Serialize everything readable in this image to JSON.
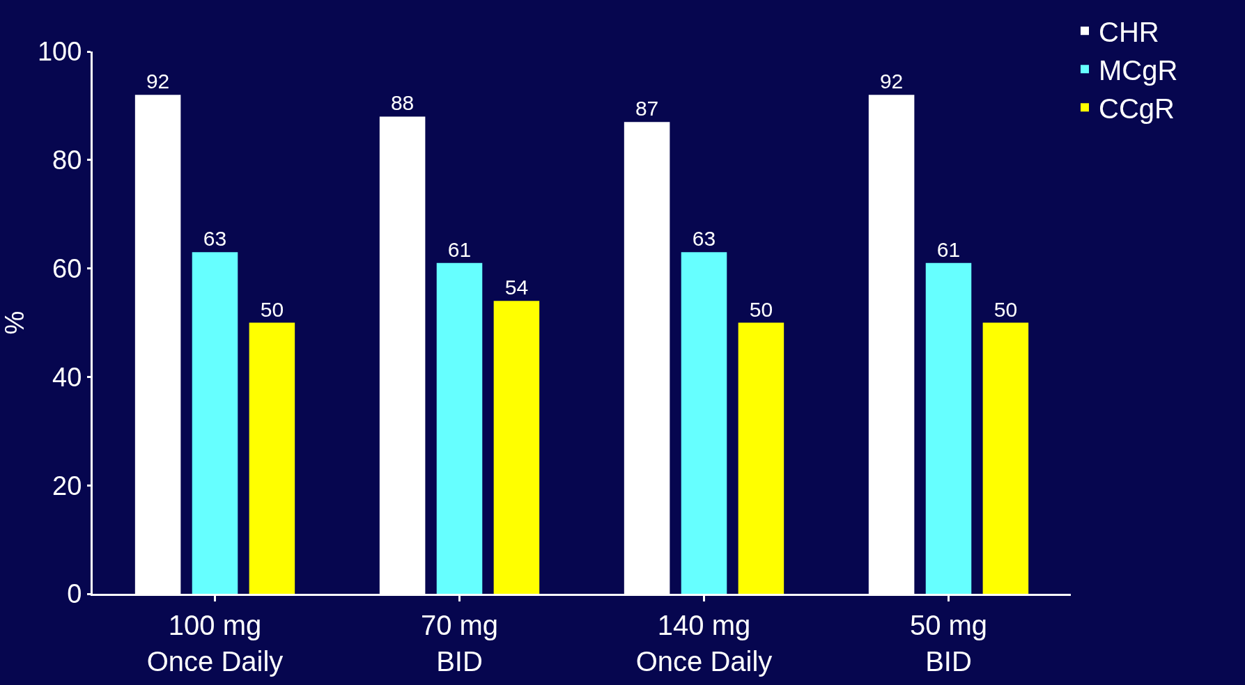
{
  "chart_data": {
    "type": "bar",
    "ylabel": "%",
    "categories": [
      "100 mg\nOnce Daily",
      "70 mg\nBID",
      "140 mg\nOnce Daily",
      "50 mg\nBID"
    ],
    "series": [
      {
        "name": "CHR",
        "color": "#ffffff",
        "values": [
          92,
          88,
          87,
          92
        ]
      },
      {
        "name": "MCgR",
        "color": "#66ffff",
        "values": [
          63,
          61,
          63,
          61
        ]
      },
      {
        "name": "CCgR",
        "color": "#ffff00",
        "values": [
          50,
          54,
          50,
          50
        ]
      }
    ],
    "ylim": [
      0,
      100
    ],
    "yticks": [
      0,
      20,
      40,
      60,
      80,
      100
    ],
    "data_labels": true,
    "grid": false,
    "legend": "top right"
  }
}
